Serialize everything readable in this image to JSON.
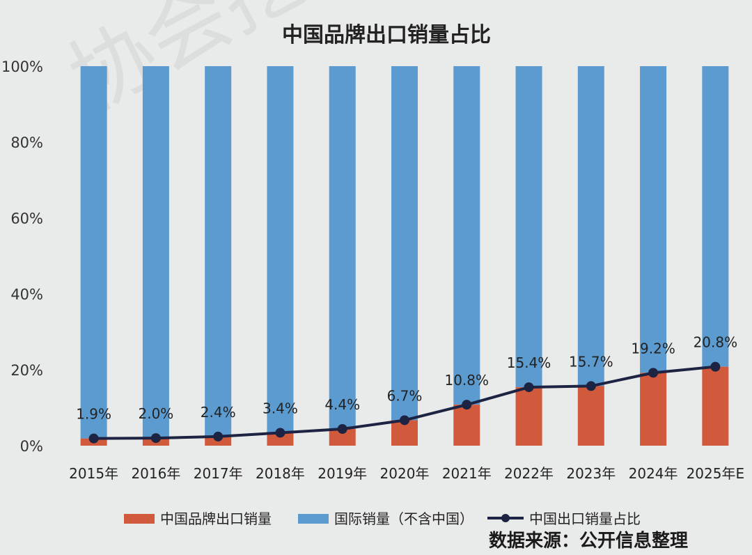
{
  "watermark": "协会挖掘",
  "chart_data": {
    "type": "bar",
    "title": "中国品牌出口销量占比",
    "source": "数据来源：公开信息整理",
    "categories": [
      "2015年",
      "2016年",
      "2017年",
      "2018年",
      "2019年",
      "2020年",
      "2021年",
      "2022年",
      "2023年",
      "2024年",
      "2025年E"
    ],
    "ylim": [
      0,
      100
    ],
    "yticks": [
      "0%",
      "20%",
      "40%",
      "60%",
      "80%",
      "100%"
    ],
    "stacked": true,
    "grid": false,
    "legend_position": "bottom",
    "series": [
      {
        "name": "中国品牌出口销量",
        "kind": "bar",
        "color": "#d25a3c",
        "values": [
          1.9,
          2.0,
          2.4,
          3.4,
          4.4,
          6.7,
          10.8,
          15.4,
          15.7,
          19.2,
          20.8
        ]
      },
      {
        "name": "国际销量（不含中国）",
        "kind": "bar",
        "color": "#5b9bd0",
        "values": [
          98.1,
          98.0,
          97.6,
          96.6,
          95.6,
          93.3,
          89.2,
          84.6,
          84.3,
          80.8,
          79.2
        ]
      },
      {
        "name": "中国出口销量占比",
        "kind": "line",
        "color": "#1d2342",
        "values": [
          1.9,
          2.0,
          2.4,
          3.4,
          4.4,
          6.7,
          10.8,
          15.4,
          15.7,
          19.2,
          20.8
        ],
        "labels": [
          "1.9%",
          "2.0%",
          "2.4%",
          "3.4%",
          "4.4%",
          "6.7%",
          "10.8%",
          "15.4%",
          "15.7%",
          "19.2%",
          "20.8%"
        ]
      }
    ]
  }
}
